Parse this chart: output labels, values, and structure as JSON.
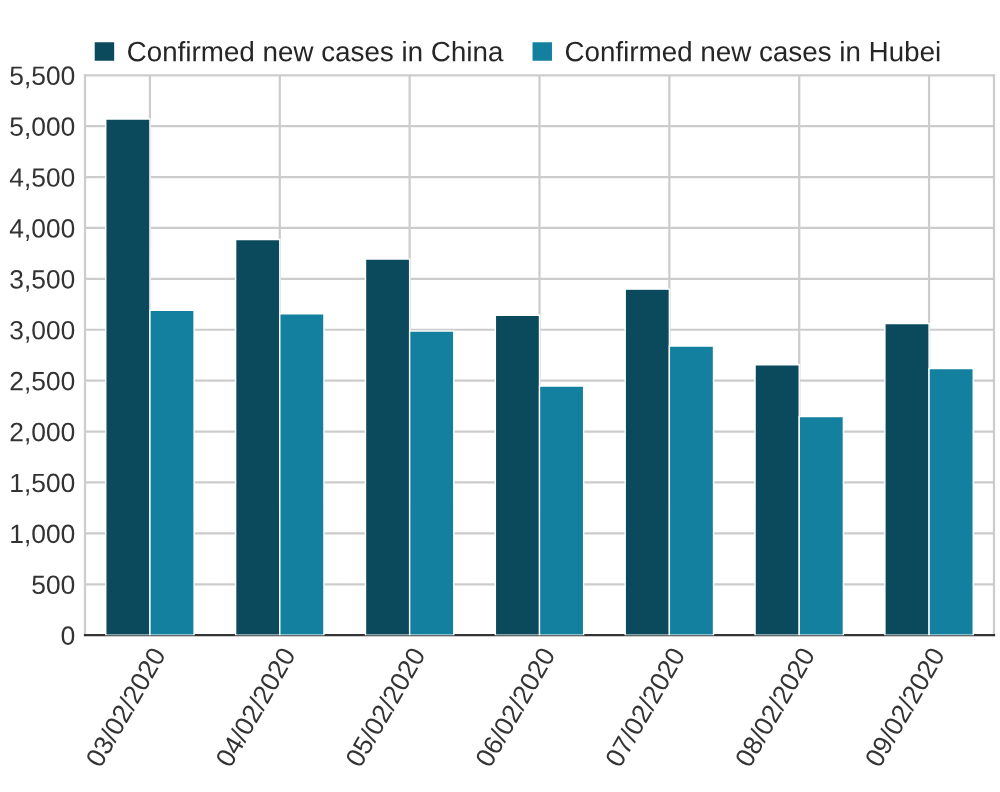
{
  "chart_data": {
    "type": "bar",
    "categories": [
      "03/02/2020",
      "04/02/2020",
      "05/02/2020",
      "06/02/2020",
      "07/02/2020",
      "08/02/2020",
      "09/02/2020"
    ],
    "series": [
      {
        "name": "Confirmed new cases in China",
        "color": "#0b4a5c",
        "values": [
          5070,
          3887,
          3694,
          3143,
          3399,
          2656,
          3062
        ]
      },
      {
        "name": "Confirmed new cases in Hubei",
        "color": "#1380a0",
        "values": [
          3190,
          3156,
          2987,
          2447,
          2841,
          2147,
          2618
        ]
      }
    ],
    "ylim": [
      0,
      5500
    ],
    "yticks": [
      {
        "value": 0,
        "label": "0"
      },
      {
        "value": 500,
        "label": "500"
      },
      {
        "value": 1000,
        "label": "1,000"
      },
      {
        "value": 1500,
        "label": "1,500"
      },
      {
        "value": 2000,
        "label": "2,000"
      },
      {
        "value": 2500,
        "label": "2,500"
      },
      {
        "value": 3000,
        "label": "3,000"
      },
      {
        "value": 3500,
        "label": "3,500"
      },
      {
        "value": 4000,
        "label": "4,000"
      },
      {
        "value": 4500,
        "label": "4,500"
      },
      {
        "value": 5000,
        "label": "5,000"
      },
      {
        "value": 5500,
        "label": "5,500"
      }
    ],
    "grid": true,
    "legend": "top left"
  }
}
